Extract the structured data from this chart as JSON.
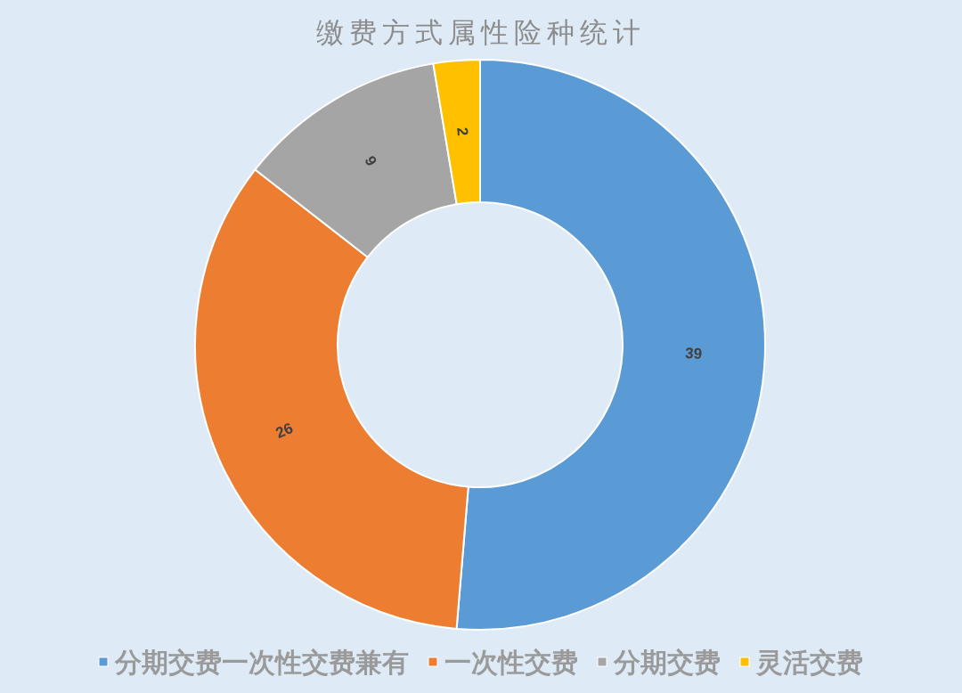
{
  "chart_data": {
    "type": "donut",
    "title": "缴费方式属性险种统计",
    "categories": [
      "分期交费一次性交费兼有",
      "一次性交费",
      "分期交费",
      "灵活交费"
    ],
    "values": [
      39,
      26,
      9,
      2
    ],
    "colors": [
      "#5b9bd5",
      "#ed7d31",
      "#a5a5a5",
      "#ffc000"
    ],
    "data_labels": true,
    "legend": "bottom"
  }
}
